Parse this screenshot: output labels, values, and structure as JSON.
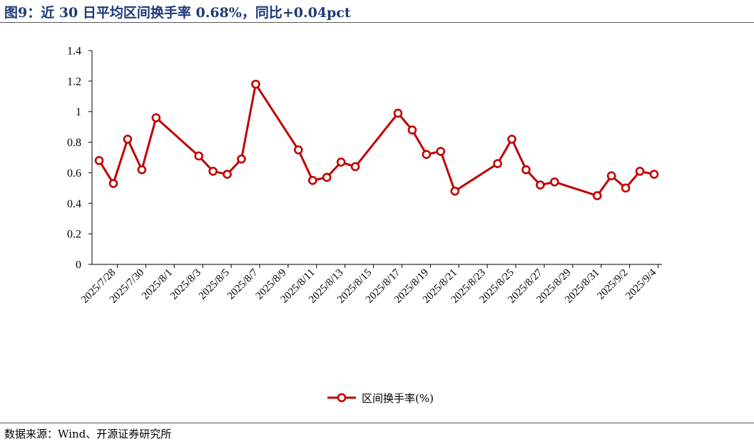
{
  "header": {
    "title": "图9：近 30 日平均区间换手率 0.68%，同比+0.04pct"
  },
  "footer": {
    "source": "数据来源：Wind、开源证券研究所"
  },
  "colors": {
    "series": "#c00000",
    "title": "#1f3a7a",
    "axis": "#000000"
  },
  "chart_data": {
    "type": "line",
    "title": "图9：近 30 日平均区间换手率 0.68%，同比+0.04pct",
    "xlabel": "",
    "ylabel": "",
    "ylim": [
      0,
      1.4
    ],
    "yticks": [
      0,
      0.2,
      0.4,
      0.6,
      0.8,
      1,
      1.2,
      1.4
    ],
    "grid": false,
    "legend": "bottom-center",
    "x_ticks": [
      "2025/7/28",
      "2025/7/30",
      "2025/8/1",
      "2025/8/3",
      "2025/8/5",
      "2025/8/7",
      "2025/8/9",
      "2025/8/11",
      "2025/8/13",
      "2025/8/15",
      "2025/8/17",
      "2025/8/19",
      "2025/8/21",
      "2025/8/23",
      "2025/8/25",
      "2025/8/27",
      "2025/8/29",
      "2025/8/31",
      "2025/9/2",
      "2025/9/4"
    ],
    "x_start": "2025/7/28",
    "x_end": "2025/9/5",
    "series": [
      {
        "name": "区间换手率(%)",
        "color": "#c00000",
        "points": [
          {
            "x": "2025/7/28",
            "y": 0.68
          },
          {
            "x": "2025/7/29",
            "y": 0.53
          },
          {
            "x": "2025/7/30",
            "y": 0.82
          },
          {
            "x": "2025/7/31",
            "y": 0.62
          },
          {
            "x": "2025/8/1",
            "y": 0.96
          },
          {
            "x": "2025/8/4",
            "y": 0.71
          },
          {
            "x": "2025/8/5",
            "y": 0.61
          },
          {
            "x": "2025/8/6",
            "y": 0.59
          },
          {
            "x": "2025/8/7",
            "y": 0.69
          },
          {
            "x": "2025/8/8",
            "y": 1.18
          },
          {
            "x": "2025/8/11",
            "y": 0.75
          },
          {
            "x": "2025/8/12",
            "y": 0.55
          },
          {
            "x": "2025/8/13",
            "y": 0.57
          },
          {
            "x": "2025/8/14",
            "y": 0.67
          },
          {
            "x": "2025/8/15",
            "y": 0.64
          },
          {
            "x": "2025/8/18",
            "y": 0.99
          },
          {
            "x": "2025/8/19",
            "y": 0.88
          },
          {
            "x": "2025/8/20",
            "y": 0.72
          },
          {
            "x": "2025/8/21",
            "y": 0.74
          },
          {
            "x": "2025/8/22",
            "y": 0.48
          },
          {
            "x": "2025/8/25",
            "y": 0.66
          },
          {
            "x": "2025/8/26",
            "y": 0.82
          },
          {
            "x": "2025/8/27",
            "y": 0.62
          },
          {
            "x": "2025/8/28",
            "y": 0.52
          },
          {
            "x": "2025/8/29",
            "y": 0.54
          },
          {
            "x": "2025/9/1",
            "y": 0.45
          },
          {
            "x": "2025/9/2",
            "y": 0.58
          },
          {
            "x": "2025/9/3",
            "y": 0.5
          },
          {
            "x": "2025/9/4",
            "y": 0.61
          },
          {
            "x": "2025/9/5",
            "y": 0.59
          }
        ]
      }
    ]
  }
}
